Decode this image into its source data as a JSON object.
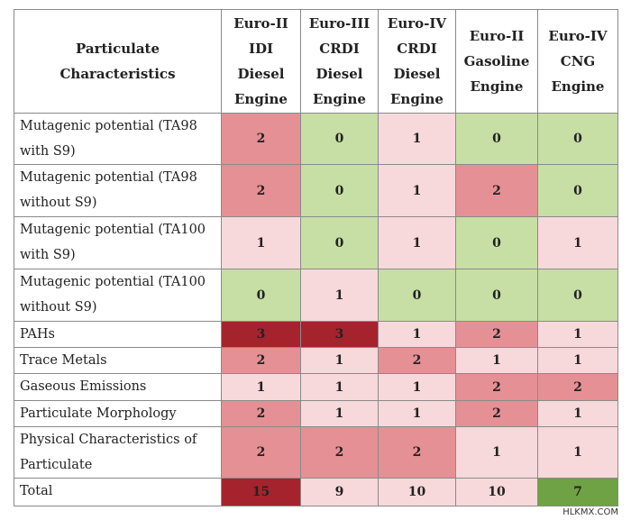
{
  "table": {
    "header": {
      "label": "Particulate Characteristics",
      "columns": [
        "Euro-II IDI Diesel Engine",
        "Euro-III CRDI Diesel Engine",
        "Euro-IV CRDI Diesel Engine",
        "Euro-II Gasoline Engine",
        "Euro-IV CNG Engine"
      ]
    },
    "rows": [
      {
        "label": "Mutagenic potential (TA98 with S9)",
        "values": [
          "2",
          "0",
          "1",
          "0",
          "0"
        ]
      },
      {
        "label": "Mutagenic potential (TA98 without S9)",
        "values": [
          "2",
          "0",
          "1",
          "2",
          "0"
        ]
      },
      {
        "label": "Mutagenic potential (TA100 with S9)",
        "values": [
          "1",
          "0",
          "1",
          "0",
          "1"
        ]
      },
      {
        "label": "Mutagenic potential (TA100 without S9)",
        "values": [
          "0",
          "1",
          "0",
          "0",
          "0"
        ]
      },
      {
        "label": "PAHs",
        "values": [
          "3",
          "3",
          "1",
          "2",
          "1"
        ]
      },
      {
        "label": "Trace Metals",
        "values": [
          "2",
          "1",
          "2",
          "1",
          "1"
        ]
      },
      {
        "label": "Gaseous Emissions",
        "values": [
          "1",
          "1",
          "1",
          "2",
          "2"
        ]
      },
      {
        "label": "Particulate Morphology",
        "values": [
          "2",
          "1",
          "1",
          "2",
          "1"
        ]
      },
      {
        "label": "Physical Characteristics of Particulate",
        "values": [
          "2",
          "2",
          "2",
          "1",
          "1"
        ]
      },
      {
        "label": "Total",
        "values": [
          "15",
          "9",
          "10",
          "10",
          "7"
        ]
      }
    ]
  },
  "colors": {
    "score_0": "#c7dea5",
    "score_1": "#f7d9db",
    "score_2": "#e59095",
    "score_3": "#a5232d",
    "lowest_total": "#6fa244"
  },
  "watermark": "HLKMX.COM"
}
